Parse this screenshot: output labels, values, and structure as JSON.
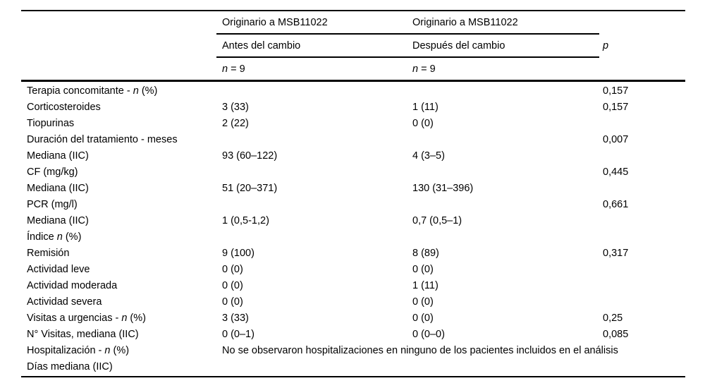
{
  "table": {
    "header": {
      "group_before": "Originario a MSB11022",
      "group_after": "Originario a MSB11022",
      "sub_before": "Antes del cambio",
      "sub_after": "Después del cambio",
      "p_label": "*p*",
      "n_before": "*n* = 9",
      "n_after": "*n* = 9"
    },
    "rows": [
      {
        "label": "Terapia concomitante - *n* (%)",
        "before": "",
        "after": "",
        "p": "0,157"
      },
      {
        "label": "Corticosteroides",
        "before": "3 (33)",
        "after": "1 (11)",
        "p": "0,157"
      },
      {
        "label": "Tiopurinas",
        "before": "2 (22)",
        "after": "0 (0)",
        "p": ""
      },
      {
        "label": "Duración del tratamiento - meses",
        "before": "",
        "after": "",
        "p": "0,007"
      },
      {
        "label": "Mediana (IIC)",
        "before": "93 (60–122)",
        "after": "4 (3–5)",
        "p": ""
      },
      {
        "label": "CF (mg/kg)",
        "before": "",
        "after": "",
        "p": "0,445"
      },
      {
        "label": "Mediana (IIC)",
        "before": "51 (20–371)",
        "after": "130 (31–396)",
        "p": ""
      },
      {
        "label": "PCR (mg/l)",
        "before": "",
        "after": "",
        "p": "0,661"
      },
      {
        "label": "Mediana (IIC)",
        "before": "1 (0,5-1,2)",
        "after": "0,7 (0,5–1)",
        "p": ""
      },
      {
        "label": "Índice *n* (%)",
        "before": "",
        "after": "",
        "p": ""
      },
      {
        "label": "Remisión",
        "before": "9 (100)",
        "after": "8 (89)",
        "p": "0,317"
      },
      {
        "label": "Actividad leve",
        "before": "0 (0)",
        "after": "0 (0)",
        "p": ""
      },
      {
        "label": "Actividad moderada",
        "before": "0 (0)",
        "after": "1 (11)",
        "p": ""
      },
      {
        "label": "Actividad severa",
        "before": "0 (0)",
        "after": "0 (0)",
        "p": ""
      },
      {
        "label": "Visitas a urgencias - *n* (%)",
        "before": "3 (33)",
        "after": "0 (0)",
        "p": "0,25"
      },
      {
        "label": "N° Visitas, mediana (IIC)",
        "before": "0 (0–1)",
        "after": "0 (0–0)",
        "p": "0,085"
      },
      {
        "label": "Hospitalización - *n* (%)",
        "span": "No se observaron hospitalizaciones en ninguno de los pacientes incluidos en el análisis"
      },
      {
        "label": "Días mediana (IIC)",
        "before": "",
        "after": "",
        "p": ""
      }
    ]
  }
}
